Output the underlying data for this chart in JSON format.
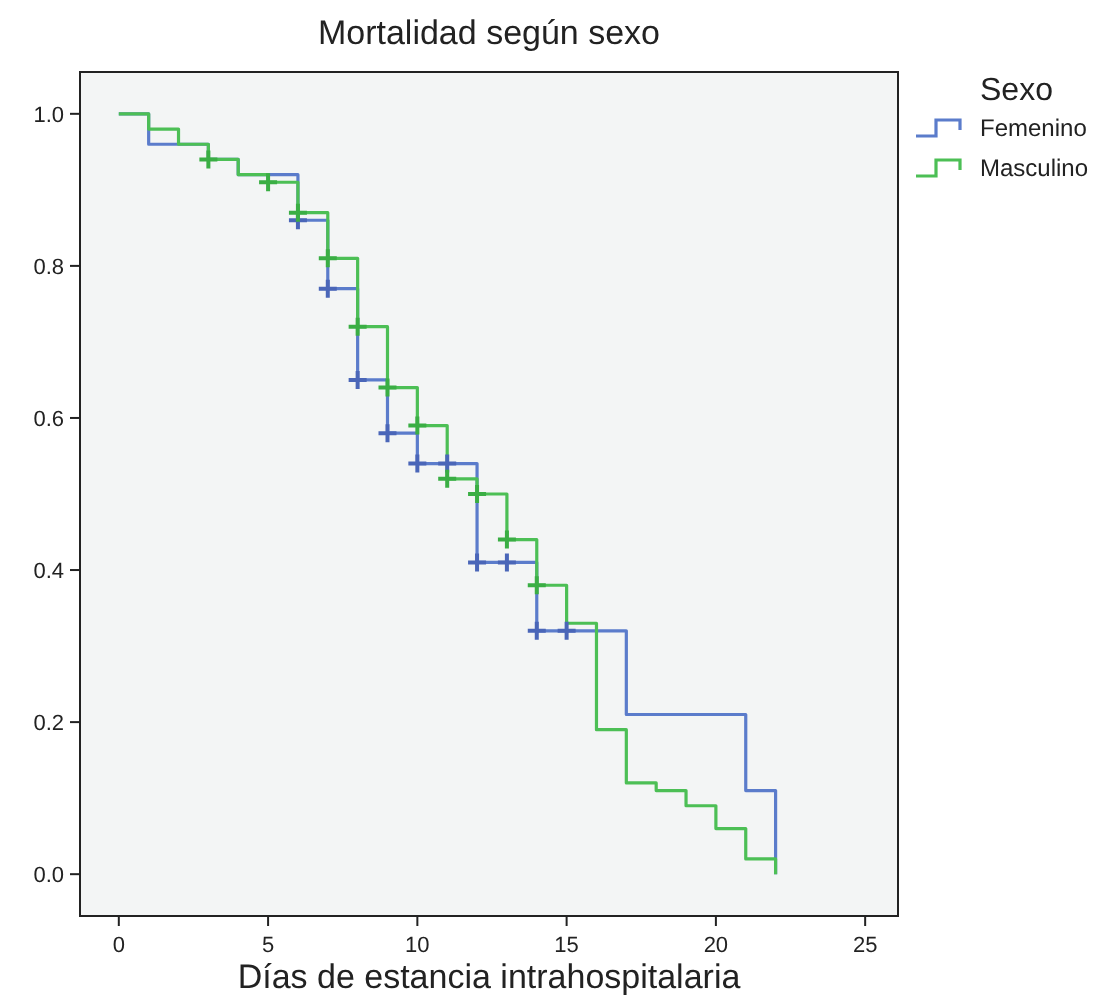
{
  "chart_data": {
    "type": "step",
    "title": "Mortalidad según sexo",
    "xlabel": "Días de estancia intrahospitalaria",
    "legend_title": "Sexo",
    "legend": "right",
    "grid": false,
    "xlim": [
      -1.3,
      26.1
    ],
    "ylim": [
      -0.055,
      1.055
    ],
    "xticks": [
      0,
      5,
      10,
      15,
      20,
      25
    ],
    "yticks": [
      {
        "value": 0,
        "label": "0.0"
      },
      {
        "value": 0.2,
        "label": "0.2"
      },
      {
        "value": 0.4,
        "label": "0.4"
      },
      {
        "value": 0.6,
        "label": "0.6"
      },
      {
        "value": 0.8,
        "label": "0.8"
      },
      {
        "value": 1,
        "label": "1.0"
      }
    ],
    "series": [
      {
        "name": "Femenino",
        "color": "#5b7ccb",
        "marker": "none",
        "x": [
          0,
          1,
          3,
          4,
          6,
          7,
          8,
          9,
          10,
          12,
          14,
          17,
          21,
          22
        ],
        "values": [
          1,
          0.96,
          0.94,
          0.92,
          0.86,
          0.77,
          0.65,
          0.58,
          0.54,
          0.41,
          0.32,
          0.21,
          0.11,
          0
        ]
      },
      {
        "name": "Masculino",
        "color": "#4cbf55",
        "marker": "none",
        "x": [
          0,
          1,
          2,
          3,
          4,
          5,
          6,
          7,
          8,
          9,
          10,
          11,
          12,
          13,
          14,
          15,
          16,
          17,
          18,
          19,
          20,
          21,
          22
        ],
        "values": [
          1,
          0.98,
          0.96,
          0.94,
          0.92,
          0.91,
          0.87,
          0.81,
          0.72,
          0.64,
          0.59,
          0.52,
          0.5,
          0.44,
          0.38,
          0.33,
          0.19,
          0.12,
          0.11,
          0.09,
          0.06,
          0.02,
          0
        ]
      },
      {
        "color": "#4a66b8",
        "type": "scatter",
        "marker": "cross",
        "x": [
          6,
          7,
          8,
          9,
          10,
          11,
          12,
          13,
          14,
          15
        ],
        "values": [
          0.86,
          0.77,
          0.65,
          0.58,
          0.54,
          0.54,
          0.41,
          0.41,
          0.32,
          0.32
        ]
      },
      {
        "color": "#3aae44",
        "type": "scatter",
        "marker": "cross",
        "x": [
          3,
          5,
          6,
          7,
          8,
          9,
          10,
          11,
          12,
          13,
          14
        ],
        "values": [
          0.94,
          0.91,
          0.87,
          0.81,
          0.72,
          0.64,
          0.59,
          0.52,
          0.5,
          0.44,
          0.38
        ]
      }
    ]
  }
}
